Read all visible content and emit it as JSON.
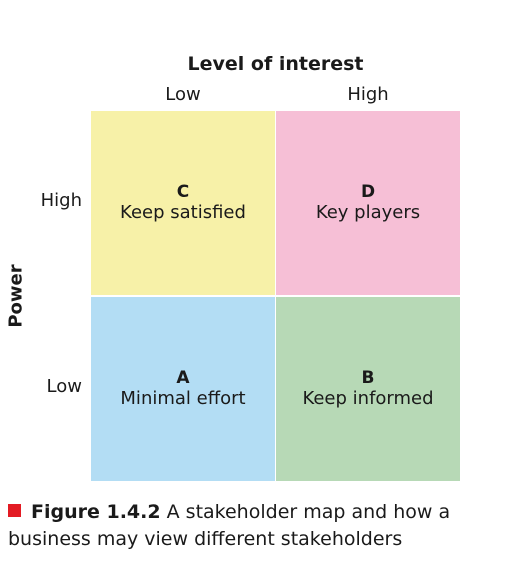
{
  "axis": {
    "x_title": "Level of interest",
    "x_low": "Low",
    "x_high": "High",
    "y_title": "Power",
    "y_high": "High",
    "y_low": "Low"
  },
  "quadrants": {
    "c": {
      "letter": "C",
      "label": "Keep satisfied"
    },
    "d": {
      "letter": "D",
      "label": "Key players"
    },
    "a": {
      "letter": "A",
      "label": "Minimal effort"
    },
    "b": {
      "letter": "B",
      "label": "Keep informed"
    }
  },
  "colors": {
    "c": "#f7f1a8",
    "d": "#f6bfd6",
    "a": "#b3ddf4",
    "b": "#b7d9b6",
    "caption_marker": "#e31b23"
  },
  "caption": {
    "label": "Figure 1.4.2",
    "text": "A stakeholder map and how a business may view different stakeholders"
  }
}
